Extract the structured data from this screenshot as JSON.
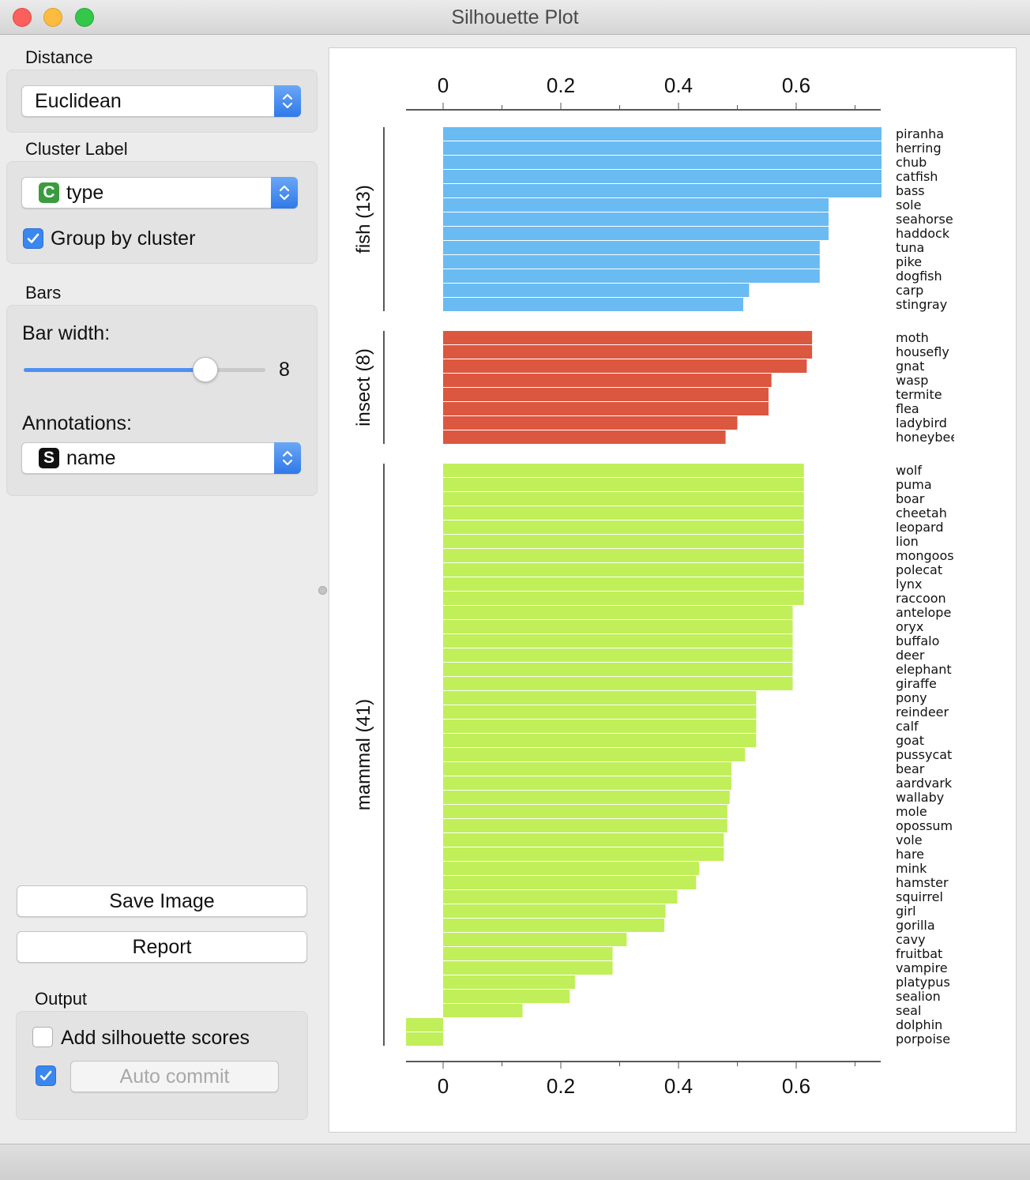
{
  "window": {
    "title": "Silhouette Plot"
  },
  "distance": {
    "label": "Distance",
    "selected": "Euclidean"
  },
  "cluster_label": {
    "label": "Cluster Label",
    "badge": "C",
    "badge_color": "#3a9c3f",
    "selected": "type",
    "group_by_cluster": "Group by cluster",
    "group_by_checked": true
  },
  "bars": {
    "label": "Bars",
    "bar_width_label": "Bar width:",
    "bar_width_value": "8",
    "bar_width_fraction": 0.75,
    "annotations_label": "Annotations:",
    "annotations_badge": "S",
    "annotations_badge_color": "#111111",
    "annotations_selected": "name"
  },
  "buttons": {
    "save_image": "Save Image",
    "report": "Report"
  },
  "output": {
    "label": "Output",
    "add_scores": "Add silhouette scores",
    "add_scores_checked": false,
    "auto_commit": "Auto commit",
    "auto_commit_checked": true
  },
  "colors": {
    "fish": "#69bbf2",
    "insect": "#dc573f",
    "mammal": "#c0ef5a",
    "accent": "#3b87f0"
  },
  "chart_data": {
    "type": "bar",
    "orientation": "horizontal",
    "title": "Silhouette Plot",
    "xlim": [
      -0.05,
      0.6
    ],
    "x_ticks": [
      "0",
      "0.2",
      "0.4",
      "0.6"
    ],
    "grid": false,
    "clusters": [
      {
        "name": "fish (13)",
        "color": "#69bbf2",
        "labels": [
          "piranha",
          "herring",
          "chub",
          "catfish",
          "bass",
          "sole",
          "seahorse",
          "haddock",
          "tuna",
          "pike",
          "dogfish",
          "carp",
          "stingray"
        ],
        "values": [
          0.745,
          0.745,
          0.745,
          0.745,
          0.745,
          0.655,
          0.655,
          0.655,
          0.64,
          0.64,
          0.64,
          0.52,
          0.51
        ]
      },
      {
        "name": "insect (8)",
        "color": "#dc573f",
        "labels": [
          "moth",
          "housefly",
          "gnat",
          "wasp",
          "termite",
          "flea",
          "ladybird",
          "honeybee"
        ],
        "values": [
          0.627,
          0.627,
          0.618,
          0.558,
          0.553,
          0.553,
          0.5,
          0.48
        ]
      },
      {
        "name": "mammal (41)",
        "color": "#c0ef5a",
        "labels": [
          "wolf",
          "puma",
          "boar",
          "cheetah",
          "leopard",
          "lion",
          "mongoose",
          "polecat",
          "lynx",
          "raccoon",
          "antelope",
          "oryx",
          "buffalo",
          "deer",
          "elephant",
          "giraffe",
          "pony",
          "reindeer",
          "calf",
          "goat",
          "pussycat",
          "bear",
          "aardvark",
          "wallaby",
          "mole",
          "opossum",
          "vole",
          "hare",
          "mink",
          "hamster",
          "squirrel",
          "girl",
          "gorilla",
          "cavy",
          "fruitbat",
          "vampire",
          "platypus",
          "sealion",
          "seal",
          "dolphin",
          "porpoise"
        ],
        "values": [
          0.613,
          0.613,
          0.613,
          0.613,
          0.613,
          0.613,
          0.613,
          0.613,
          0.613,
          0.613,
          0.594,
          0.594,
          0.594,
          0.594,
          0.594,
          0.594,
          0.532,
          0.532,
          0.532,
          0.532,
          0.513,
          0.49,
          0.49,
          0.487,
          0.483,
          0.483,
          0.477,
          0.477,
          0.435,
          0.43,
          0.398,
          0.378,
          0.376,
          0.312,
          0.288,
          0.288,
          0.224,
          0.215,
          0.135,
          -0.063,
          -0.063
        ]
      }
    ]
  }
}
